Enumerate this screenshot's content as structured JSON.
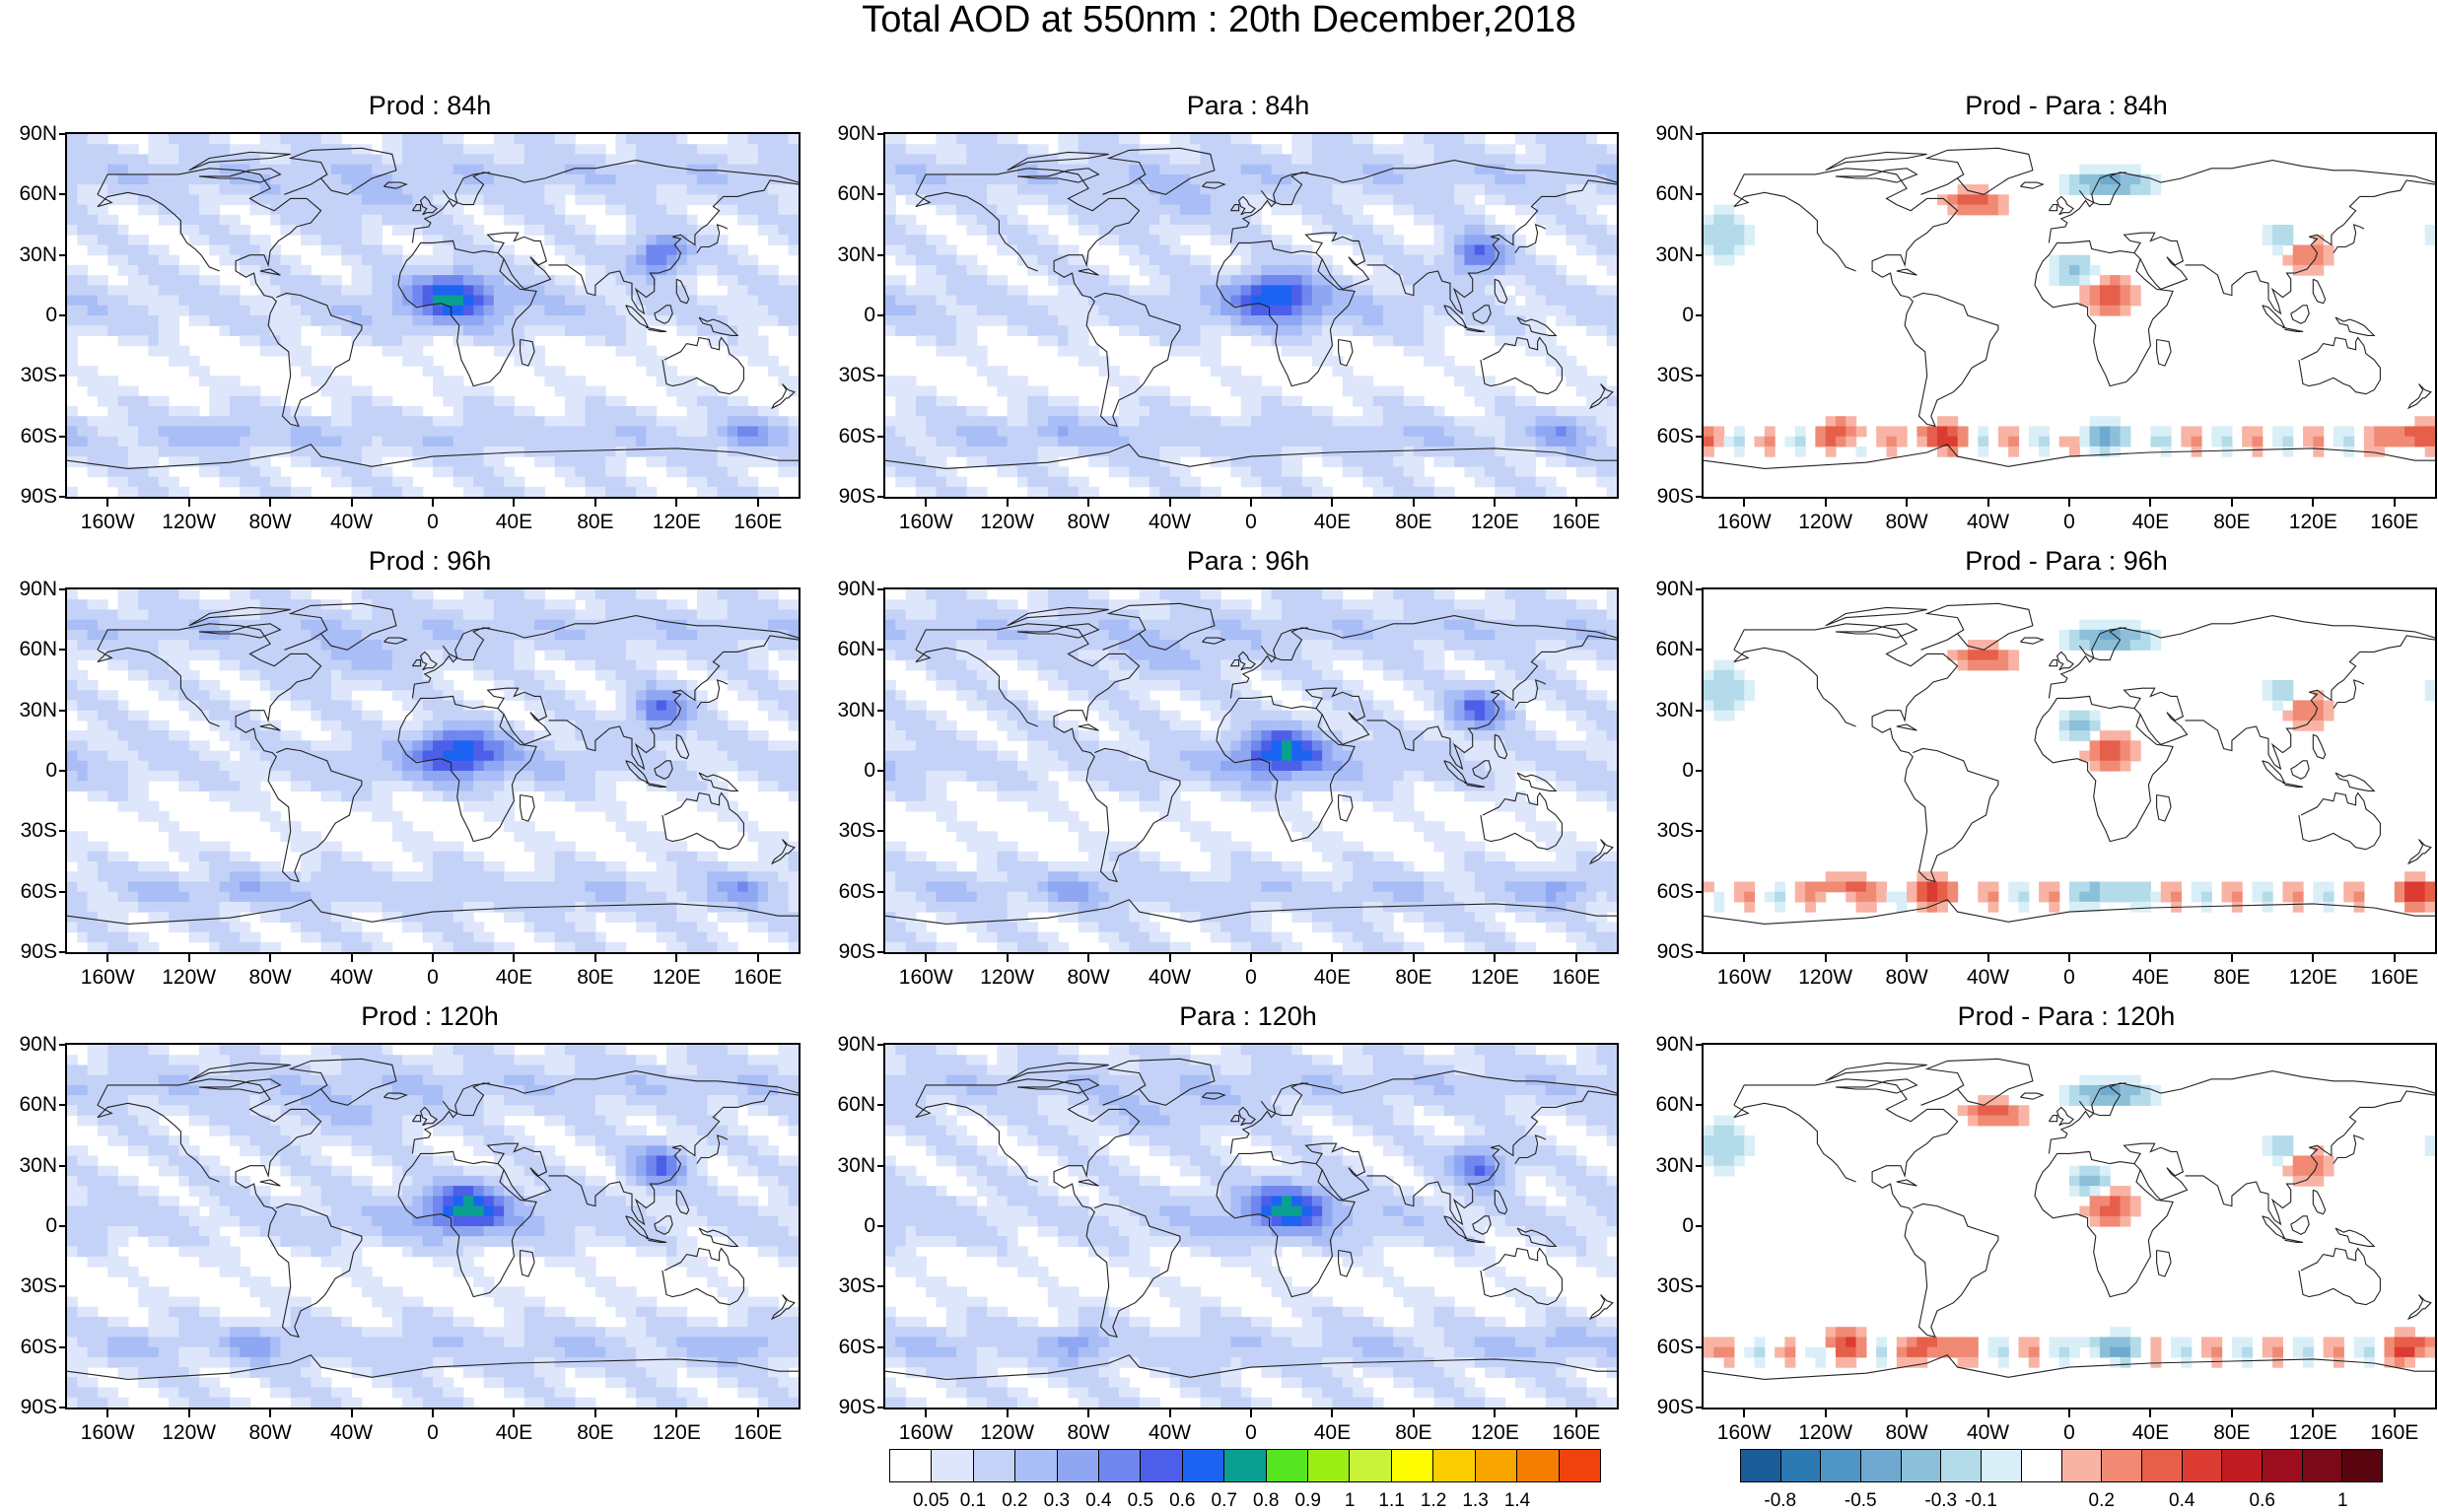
{
  "title": "Total AOD at 550nm : 20th December,2018",
  "panels": [
    {
      "title": "Prod : 84h",
      "kind": "aod"
    },
    {
      "title": "Para : 84h",
      "kind": "aod"
    },
    {
      "title": "Prod - Para : 84h",
      "kind": "diff"
    },
    {
      "title": "Prod : 96h",
      "kind": "aod"
    },
    {
      "title": "Para : 96h",
      "kind": "aod"
    },
    {
      "title": "Prod - Para : 96h",
      "kind": "diff"
    },
    {
      "title": "Prod : 120h",
      "kind": "aod"
    },
    {
      "title": "Para : 120h",
      "kind": "aod"
    },
    {
      "title": "Prod - Para : 120h",
      "kind": "diff"
    }
  ],
  "lat_ticks": [
    "90N",
    "60N",
    "30N",
    "0",
    "30S",
    "60S",
    "90S"
  ],
  "lon_ticks": [
    "160W",
    "120W",
    "80W",
    "40W",
    "0",
    "40E",
    "80E",
    "120E",
    "160E"
  ],
  "aod_colorbar": {
    "colors": [
      "#ffffff",
      "#dde6fb",
      "#c4d2f8",
      "#a9bdf6",
      "#8fa6f2",
      "#6f87ee",
      "#4d5fe8",
      "#1d63f2",
      "#0aa091",
      "#55e621",
      "#9ced14",
      "#c8f338",
      "#fdfd00",
      "#fbcd00",
      "#f8a500",
      "#f57e00",
      "#f2420e"
    ],
    "labels": [
      "0.05",
      "0.1",
      "0.2",
      "0.3",
      "0.4",
      "0.5",
      "0.6",
      "0.7",
      "0.8",
      "0.9",
      "1",
      "1.1",
      "1.2",
      "1.3",
      "1.4"
    ]
  },
  "diff_colorbar": {
    "colors": [
      "#1a5d99",
      "#2c78b2",
      "#4f95c5",
      "#6fa9cf",
      "#8cc0d9",
      "#b3dbe9",
      "#d9eff7",
      "#ffffff",
      "#f8b3a4",
      "#f08a74",
      "#e65f4b",
      "#dc3b31",
      "#c11b24",
      "#9c0e1e",
      "#7a0a17",
      "#5a0410"
    ],
    "labels": [
      "-0.8",
      "-0.5",
      "-0.3",
      "-0.1",
      "0.2",
      "0.4",
      "0.6",
      "1"
    ]
  }
}
